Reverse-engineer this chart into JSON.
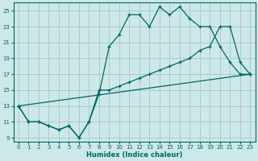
{
  "xlabel": "Humidex (Indice chaleur)",
  "bg_color": "#cde8e8",
  "grid_color": "#aacccc",
  "line_color": "#006666",
  "xlim": [
    -0.5,
    23.5
  ],
  "ylim": [
    8.5,
    26.0
  ],
  "xticks": [
    0,
    1,
    2,
    3,
    4,
    5,
    6,
    7,
    8,
    9,
    10,
    11,
    12,
    13,
    14,
    15,
    16,
    17,
    18,
    19,
    20,
    21,
    22,
    23
  ],
  "yticks": [
    9,
    11,
    13,
    15,
    17,
    19,
    21,
    23,
    25
  ],
  "curve1_x": [
    0,
    1,
    2,
    3,
    4,
    5,
    6,
    7,
    8,
    9,
    10,
    11,
    12,
    13,
    14,
    15,
    16,
    17,
    18,
    19,
    20,
    21,
    22,
    23
  ],
  "curve1_y": [
    13,
    11,
    11,
    10.5,
    10,
    10.5,
    9,
    11,
    14.5,
    20.5,
    22,
    24.5,
    24.5,
    23,
    25.5,
    24.5,
    25.5,
    24,
    23,
    23,
    20.5,
    18.5,
    17.0,
    17.0
  ],
  "curve2_x": [
    0,
    1,
    2,
    3,
    4,
    5,
    6,
    7,
    8,
    9,
    10,
    11,
    12,
    13,
    14,
    15,
    16,
    17,
    18,
    19,
    20,
    21,
    22,
    23
  ],
  "curve2_y": [
    13,
    11,
    11,
    10.5,
    10,
    10.5,
    9,
    11,
    15,
    15,
    15.5,
    16,
    16.5,
    17,
    17.5,
    18,
    18.5,
    19,
    20,
    20.5,
    23,
    23,
    18.5,
    17.0
  ],
  "curve3_x": [
    0,
    23
  ],
  "curve3_y": [
    13,
    17
  ]
}
